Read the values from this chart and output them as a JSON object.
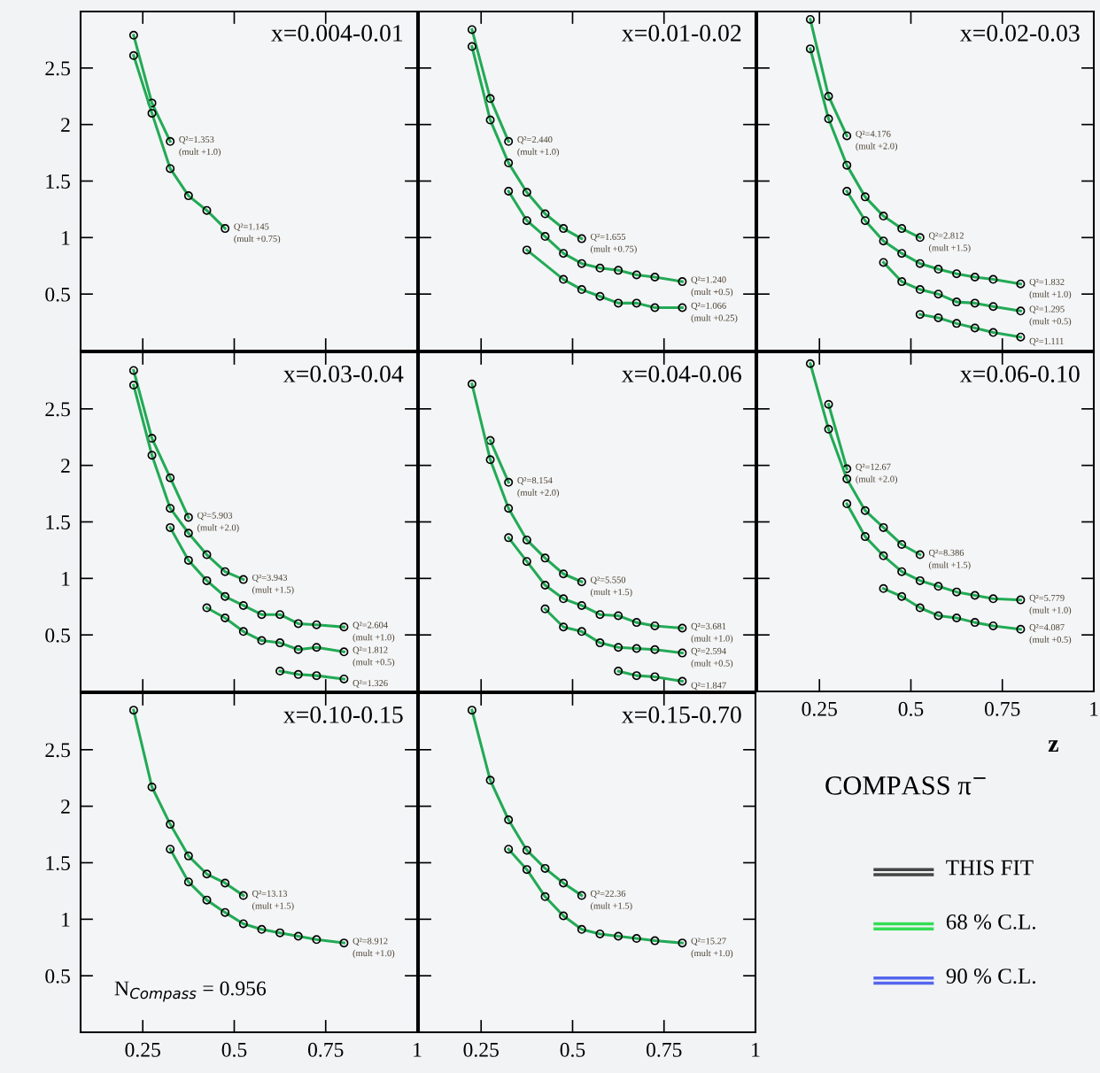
{
  "chart_data": [
    {
      "type": "line",
      "title": "x=0.004-0.01",
      "xlim": [
        0.08,
        1.0
      ],
      "ylim": [
        0,
        3
      ],
      "xticks": [
        0.25,
        0.5,
        0.75,
        1
      ],
      "yticks": [
        0.5,
        1,
        1.5,
        2,
        2.5
      ],
      "tick_labels": "y",
      "marker": "circle",
      "series": [
        {
          "color": "#22aa55",
          "x": [
            0.225,
            0.275,
            0.325
          ],
          "values": [
            2.79,
            2.19,
            1.85
          ]
        },
        {
          "color": "#22aa55",
          "x": [
            0.225,
            0.275,
            0.325,
            0.375,
            0.425,
            0.475
          ],
          "values": [
            2.61,
            2.1,
            1.61,
            1.37,
            1.24,
            1.08
          ]
        }
      ],
      "annotations": [
        {
          "text": "Q²=1.353\n(mult +1.0)",
          "x": 0.325,
          "y": 1.85
        },
        {
          "text": "Q²=1.145\n(mult +0.75)",
          "x": 0.475,
          "y": 1.08
        }
      ]
    },
    {
      "type": "line",
      "title": "x=0.01-0.02",
      "xlim": [
        0.08,
        1.0
      ],
      "ylim": [
        0,
        3
      ],
      "xticks": [
        0.25,
        0.5,
        0.75,
        1
      ],
      "yticks": [
        0.5,
        1,
        1.5,
        2,
        2.5
      ],
      "tick_labels": false,
      "marker": "circle",
      "series": [
        {
          "color": "#22aa55",
          "x": [
            0.225,
            0.275,
            0.325
          ],
          "values": [
            2.84,
            2.23,
            1.85
          ]
        },
        {
          "color": "#22aa55",
          "x": [
            0.225,
            0.275,
            0.325,
            0.375,
            0.425,
            0.475,
            0.525
          ],
          "values": [
            2.69,
            2.04,
            1.66,
            1.4,
            1.21,
            1.08,
            0.99
          ]
        },
        {
          "color": "#22aa55",
          "x": [
            0.325,
            0.375,
            0.425,
            0.475,
            0.525,
            0.575,
            0.625,
            0.675,
            0.725,
            0.8
          ],
          "values": [
            1.41,
            1.15,
            1.01,
            0.86,
            0.77,
            0.73,
            0.71,
            0.67,
            0.65,
            0.61
          ]
        },
        {
          "color": "#22aa55",
          "x": [
            0.375,
            0.475,
            0.525,
            0.575,
            0.625,
            0.675,
            0.725,
            0.8
          ],
          "values": [
            0.89,
            0.63,
            0.54,
            0.48,
            0.42,
            0.42,
            0.38,
            0.38
          ]
        }
      ],
      "annotations": [
        {
          "text": "Q²=2.440\n(mult +1.0)",
          "x": 0.325,
          "y": 1.85
        },
        {
          "text": "Q²=1.655\n(mult +0.75)",
          "x": 0.525,
          "y": 0.99
        },
        {
          "text": "Q²=1.240\n(mult +0.5)",
          "x": 0.8,
          "y": 0.61
        },
        {
          "text": "Q²=1.066\n(mult +0.25)",
          "x": 0.8,
          "y": 0.38
        }
      ]
    },
    {
      "type": "line",
      "title": "x=0.02-0.03",
      "xlim": [
        0.08,
        1.0
      ],
      "ylim": [
        0,
        3
      ],
      "xticks": [
        0.25,
        0.5,
        0.75,
        1
      ],
      "yticks": [
        0.5,
        1,
        1.5,
        2,
        2.5
      ],
      "tick_labels": false,
      "marker": "circle",
      "series": [
        {
          "color": "#22aa55",
          "x": [
            0.225,
            0.275,
            0.325
          ],
          "values": [
            2.93,
            2.25,
            1.9
          ]
        },
        {
          "color": "#22aa55",
          "x": [
            0.225,
            0.275,
            0.325,
            0.375,
            0.425,
            0.475,
            0.525
          ],
          "values": [
            2.67,
            2.05,
            1.64,
            1.36,
            1.19,
            1.08,
            1.0
          ]
        },
        {
          "color": "#22aa55",
          "x": [
            0.325,
            0.375,
            0.425,
            0.475,
            0.525,
            0.575,
            0.625,
            0.675,
            0.725,
            0.8
          ],
          "values": [
            1.41,
            1.15,
            0.97,
            0.86,
            0.77,
            0.72,
            0.68,
            0.65,
            0.63,
            0.59
          ]
        },
        {
          "color": "#22aa55",
          "x": [
            0.425,
            0.475,
            0.525,
            0.575,
            0.625,
            0.675,
            0.725,
            0.8
          ],
          "values": [
            0.78,
            0.61,
            0.54,
            0.5,
            0.43,
            0.42,
            0.39,
            0.35
          ]
        },
        {
          "color": "#22aa55",
          "x": [
            0.525,
            0.575,
            0.625,
            0.675,
            0.725,
            0.8
          ],
          "values": [
            0.32,
            0.29,
            0.24,
            0.2,
            0.16,
            0.12
          ]
        }
      ],
      "annotations": [
        {
          "text": "Q²=4.176\n(mult +2.0)",
          "x": 0.325,
          "y": 1.9
        },
        {
          "text": "Q²=2.812\n(mult +1.5)",
          "x": 0.525,
          "y": 1.0
        },
        {
          "text": "Q²=1.832\n(mult +1.0)",
          "x": 0.8,
          "y": 0.59
        },
        {
          "text": "Q²=1.295\n(mult +0.5)",
          "x": 0.8,
          "y": 0.35
        },
        {
          "text": "Q²=1.111",
          "x": 0.8,
          "y": 0.12
        }
      ]
    },
    {
      "type": "line",
      "title": "x=0.03-0.04",
      "xlim": [
        0.08,
        1.0
      ],
      "ylim": [
        0,
        3
      ],
      "xticks": [
        0.25,
        0.5,
        0.75,
        1
      ],
      "yticks": [
        0.5,
        1,
        1.5,
        2,
        2.5
      ],
      "tick_labels": "y",
      "marker": "circle",
      "series": [
        {
          "color": "#22aa55",
          "x": [
            0.225,
            0.275,
            0.325,
            0.375
          ],
          "values": [
            2.84,
            2.24,
            1.89,
            1.54
          ]
        },
        {
          "color": "#22aa55",
          "x": [
            0.225,
            0.275,
            0.325,
            0.375,
            0.425,
            0.475,
            0.525
          ],
          "values": [
            2.71,
            2.09,
            1.62,
            1.4,
            1.21,
            1.06,
            0.99
          ]
        },
        {
          "color": "#22aa55",
          "x": [
            0.325,
            0.375,
            0.425,
            0.475,
            0.525,
            0.575,
            0.625,
            0.675,
            0.725,
            0.8
          ],
          "values": [
            1.45,
            1.16,
            0.98,
            0.84,
            0.76,
            0.68,
            0.68,
            0.6,
            0.59,
            0.57
          ]
        },
        {
          "color": "#22aa55",
          "x": [
            0.425,
            0.475,
            0.525,
            0.575,
            0.625,
            0.675,
            0.725,
            0.8
          ],
          "values": [
            0.74,
            0.65,
            0.53,
            0.45,
            0.43,
            0.37,
            0.39,
            0.35
          ]
        },
        {
          "color": "#22aa55",
          "x": [
            0.625,
            0.675,
            0.725,
            0.8
          ],
          "values": [
            0.18,
            0.15,
            0.14,
            0.11
          ]
        }
      ],
      "annotations": [
        {
          "text": "Q²=5.903\n(mult +2.0)",
          "x": 0.375,
          "y": 1.54
        },
        {
          "text": "Q²=3.943\n(mult +1.5)",
          "x": 0.525,
          "y": 0.99
        },
        {
          "text": "Q²=2.604\n(mult +1.0)",
          "x": 0.8,
          "y": 0.57
        },
        {
          "text": "Q²=1.812\n(mult +0.5)",
          "x": 0.8,
          "y": 0.35
        },
        {
          "text": "Q²=1.326",
          "x": 0.8,
          "y": 0.11
        }
      ]
    },
    {
      "type": "line",
      "title": "x=0.04-0.06",
      "xlim": [
        0.08,
        1.0
      ],
      "ylim": [
        0,
        3
      ],
      "xticks": [
        0.25,
        0.5,
        0.75,
        1
      ],
      "yticks": [
        0.5,
        1,
        1.5,
        2,
        2.5
      ],
      "tick_labels": false,
      "marker": "circle",
      "series": [
        {
          "color": "#22aa55",
          "x": [
            0.275,
            0.325
          ],
          "values": [
            2.22,
            1.85
          ]
        },
        {
          "color": "#22aa55",
          "x": [
            0.225,
            0.275,
            0.325,
            0.375,
            0.425,
            0.475,
            0.525
          ],
          "values": [
            2.72,
            2.05,
            1.62,
            1.34,
            1.18,
            1.04,
            0.97
          ]
        },
        {
          "color": "#22aa55",
          "x": [
            0.325,
            0.375,
            0.425,
            0.475,
            0.525,
            0.575,
            0.625,
            0.675,
            0.725,
            0.8
          ],
          "values": [
            1.36,
            1.15,
            0.94,
            0.82,
            0.76,
            0.68,
            0.67,
            0.61,
            0.58,
            0.56
          ]
        },
        {
          "color": "#22aa55",
          "x": [
            0.425,
            0.475,
            0.525,
            0.575,
            0.625,
            0.675,
            0.725,
            0.8
          ],
          "values": [
            0.73,
            0.57,
            0.53,
            0.43,
            0.39,
            0.38,
            0.37,
            0.34
          ]
        },
        {
          "color": "#22aa55",
          "x": [
            0.625,
            0.675,
            0.725,
            0.8
          ],
          "values": [
            0.18,
            0.14,
            0.13,
            0.09
          ]
        }
      ],
      "annotations": [
        {
          "text": "Q²=8.154\n(mult +2.0)",
          "x": 0.325,
          "y": 1.85
        },
        {
          "text": "Q²=5.550\n(mult +1.5)",
          "x": 0.525,
          "y": 0.97
        },
        {
          "text": "Q²=3.681\n(mult +1.0)",
          "x": 0.8,
          "y": 0.56
        },
        {
          "text": "Q²=2.594\n(mult +0.5)",
          "x": 0.8,
          "y": 0.34
        },
        {
          "text": "Q²=1.847",
          "x": 0.8,
          "y": 0.09
        }
      ]
    },
    {
      "type": "line",
      "title": "x=0.06-0.10",
      "xlabel": "z",
      "xlim": [
        0.08,
        1.0
      ],
      "ylim": [
        0,
        3
      ],
      "xticks": [
        0.25,
        0.5,
        0.75,
        1
      ],
      "yticks": [
        0.5,
        1,
        1.5,
        2,
        2.5
      ],
      "tick_labels": "x",
      "marker": "circle",
      "series": [
        {
          "color": "#22aa55",
          "x": [
            0.275,
            0.325
          ],
          "values": [
            2.54,
            1.97
          ]
        },
        {
          "color": "#22aa55",
          "x": [
            0.225,
            0.275,
            0.325,
            0.375,
            0.425,
            0.475,
            0.525
          ],
          "values": [
            2.9,
            2.32,
            1.88,
            1.6,
            1.45,
            1.3,
            1.21
          ]
        },
        {
          "color": "#22aa55",
          "x": [
            0.325,
            0.375,
            0.425,
            0.475,
            0.525,
            0.575,
            0.625,
            0.675,
            0.725,
            0.8
          ],
          "values": [
            1.66,
            1.37,
            1.2,
            1.06,
            0.98,
            0.93,
            0.88,
            0.85,
            0.82,
            0.81
          ]
        },
        {
          "color": "#22aa55",
          "x": [
            0.425,
            0.475,
            0.525,
            0.575,
            0.625,
            0.675,
            0.725,
            0.8
          ],
          "values": [
            0.91,
            0.84,
            0.74,
            0.67,
            0.65,
            0.61,
            0.58,
            0.55
          ]
        }
      ],
      "annotations": [
        {
          "text": "Q²=12.67\n(mult +2.0)",
          "x": 0.325,
          "y": 1.97
        },
        {
          "text": "Q²=8.386\n(mult +1.5)",
          "x": 0.525,
          "y": 1.21
        },
        {
          "text": "Q²=5.779\n(mult +1.0)",
          "x": 0.8,
          "y": 0.81
        },
        {
          "text": "Q²=4.087\n(mult +0.5)",
          "x": 0.8,
          "y": 0.55
        }
      ]
    },
    {
      "type": "line",
      "title": "x=0.10-0.15",
      "xlim": [
        0.08,
        1.0
      ],
      "ylim": [
        0,
        3
      ],
      "xticks": [
        0.25,
        0.5,
        0.75,
        1
      ],
      "yticks": [
        0.5,
        1,
        1.5,
        2,
        2.5
      ],
      "marker": "circle",
      "series": [
        {
          "color": "#22aa55",
          "x": [
            0.225,
            0.275,
            0.325,
            0.375,
            0.425,
            0.475,
            0.525
          ],
          "values": [
            2.85,
            2.17,
            1.84,
            1.56,
            1.4,
            1.32,
            1.21
          ]
        },
        {
          "color": "#22aa55",
          "x": [
            0.325,
            0.375,
            0.425,
            0.475,
            0.525,
            0.575,
            0.625,
            0.675,
            0.725,
            0.8
          ],
          "values": [
            1.62,
            1.33,
            1.17,
            1.06,
            0.96,
            0.91,
            0.88,
            0.85,
            0.82,
            0.79
          ]
        }
      ],
      "annotations": [
        {
          "text": "Q²=13.13\n(mult +1.5)",
          "x": 0.525,
          "y": 1.21
        },
        {
          "text": "Q²=8.912\n(mult +1.0)",
          "x": 0.8,
          "y": 0.79
        },
        "N$_{Compass}$ = 0.956"
      ]
    },
    {
      "type": "line",
      "title": "x=0.15-0.70",
      "xlim": [
        0.08,
        1.0
      ],
      "ylim": [
        0,
        3
      ],
      "xticks": [
        0.25,
        0.5,
        0.75,
        1
      ],
      "yticks": [
        0.5,
        1,
        1.5,
        2,
        2.5
      ],
      "tick_labels": "x",
      "marker": "circle",
      "series": [
        {
          "color": "#22aa55",
          "x": [
            0.225,
            0.275,
            0.325,
            0.375,
            0.425,
            0.475,
            0.525
          ],
          "values": [
            2.85,
            2.23,
            1.88,
            1.61,
            1.45,
            1.32,
            1.21
          ]
        },
        {
          "color": "#22aa55",
          "x": [
            0.325,
            0.375,
            0.425,
            0.475,
            0.525,
            0.575,
            0.625,
            0.675,
            0.725,
            0.8
          ],
          "values": [
            1.62,
            1.44,
            1.2,
            1.03,
            0.91,
            0.87,
            0.85,
            0.83,
            0.81,
            0.79
          ]
        }
      ],
      "annotations": [
        {
          "text": "Q²=22.36\n(mult +1.5)",
          "x": 0.525,
          "y": 1.21
        },
        {
          "text": "Q²=15.27\n(mult +1.0)",
          "x": 0.8,
          "y": 0.79
        }
      ]
    },
    {
      "type": "other",
      "title": "COMPASS π$^{−}$",
      "annotations": [
        "THIS FIT",
        "68 % C.L.",
        "90 % C.L."
      ],
      "colors": [
        "#444444",
        "#33dd55",
        "#5566ee"
      ]
    }
  ]
}
